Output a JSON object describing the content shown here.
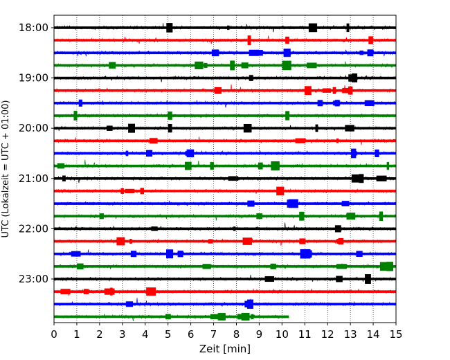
{
  "chart_data": {
    "type": "line",
    "title": "",
    "xlabel": "Zeit  [min]",
    "ylabel": "UTC (Lokalzeit = UTC + 01:00)",
    "xlim": [
      0,
      15
    ],
    "x_ticks": [
      0,
      1,
      2,
      3,
      4,
      5,
      6,
      7,
      8,
      9,
      10,
      11,
      12,
      13,
      14,
      15
    ],
    "x_tick_labels": [
      "0",
      "1",
      "2",
      "3",
      "4",
      "5",
      "6",
      "7",
      "8",
      "9",
      "10",
      "11",
      "12",
      "13",
      "14",
      "15"
    ],
    "y_tick_labels": [
      "18:00",
      "19:00",
      "20:00",
      "21:00",
      "22:00",
      "23:00"
    ],
    "y_tick_rows": [
      0,
      4,
      8,
      12,
      16,
      20
    ],
    "vertical_grid": true,
    "grid_style": "dotted",
    "row_start_time": "18:00",
    "row_interval_minutes": 15,
    "row_count": 24,
    "last_row_end_min": 10.3,
    "colors": [
      "#000000",
      "#ff0000",
      "#0000ff",
      "#008000"
    ],
    "trace_color_cycle": [
      "black",
      "red",
      "blue",
      "green"
    ]
  }
}
